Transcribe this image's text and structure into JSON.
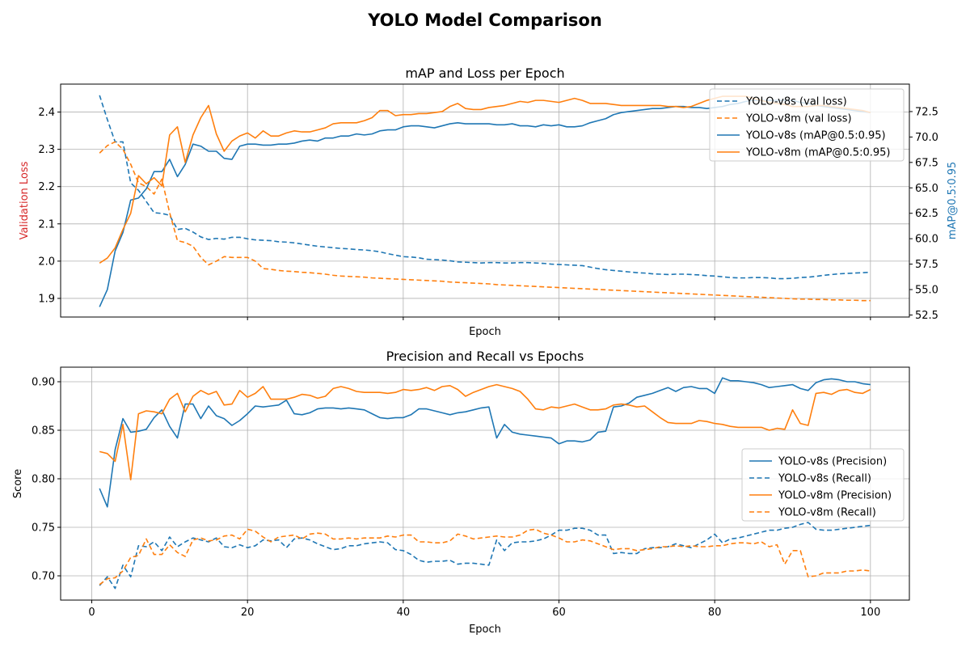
{
  "figure": {
    "title": "YOLO Model Comparison"
  },
  "colors": {
    "v8s": "#1f77b4",
    "v8m": "#ff7f0e",
    "loss_label": "#d62728",
    "map_label": "#1f77b4",
    "grid": "#b0b0b0"
  },
  "chart_data": [
    {
      "type": "line",
      "title": "mAP and Loss per Epoch",
      "xlabel": "Epoch",
      "ylabel": "Validation Loss",
      "ylabel_right": "mAP@0.5:0.95",
      "xlim": [
        -4,
        105
      ],
      "ylim": [
        1.85,
        2.475
      ],
      "ylim_right": [
        52.3,
        75.2
      ],
      "xticks": [
        20,
        40,
        60,
        80,
        100
      ],
      "xtick_labels_visible": false,
      "yticks": [
        "1.9",
        "2.0",
        "2.1",
        "2.2",
        "2.3",
        "2.4"
      ],
      "yticks_right": [
        "52.5",
        "55.0",
        "57.5",
        "60.0",
        "62.5",
        "65.0",
        "67.5",
        "70.0",
        "72.5"
      ],
      "grid": true,
      "legend": "upper right",
      "series": [
        {
          "name": "YOLO-v8s (val loss)",
          "axis": "left",
          "style": "dashed",
          "color": "#1f77b4",
          "values": [
            2.445,
            2.38,
            2.32,
            2.32,
            2.21,
            2.19,
            2.16,
            2.13,
            2.128,
            2.123,
            2.085,
            2.088,
            2.078,
            2.065,
            2.058,
            2.061,
            2.059,
            2.064,
            2.064,
            2.06,
            2.057,
            2.056,
            2.055,
            2.052,
            2.051,
            2.049,
            2.046,
            2.043,
            2.04,
            2.038,
            2.036,
            2.034,
            2.033,
            2.031,
            2.03,
            2.028,
            2.025,
            2.02,
            2.016,
            2.012,
            2.011,
            2.009,
            2.005,
            2.004,
            2.003,
            2.001,
            1.998,
            1.997,
            1.996,
            1.995,
            1.996,
            1.996,
            1.995,
            1.995,
            1.996,
            1.996,
            1.995,
            1.994,
            1.992,
            1.991,
            1.99,
            1.989,
            1.988,
            1.984,
            1.98,
            1.977,
            1.975,
            1.973,
            1.971,
            1.969,
            1.968,
            1.966,
            1.965,
            1.964,
            1.965,
            1.965,
            1.964,
            1.963,
            1.961,
            1.96,
            1.958,
            1.956,
            1.955,
            1.955,
            1.956,
            1.956,
            1.955,
            1.953,
            1.953,
            1.954,
            1.956,
            1.957,
            1.959,
            1.962,
            1.964,
            1.966,
            1.967,
            1.968,
            1.969,
            1.97
          ]
        },
        {
          "name": "YOLO-v8m (val loss)",
          "axis": "left",
          "style": "dashed",
          "color": "#ff7f0e",
          "values": [
            2.29,
            2.31,
            2.32,
            2.3,
            2.26,
            2.21,
            2.2,
            2.18,
            2.22,
            2.13,
            2.055,
            2.05,
            2.04,
            2.01,
            1.99,
            2.0,
            2.012,
            2.01,
            2.01,
            2.01,
            2.0,
            1.98,
            1.978,
            1.975,
            1.973,
            1.972,
            1.97,
            1.969,
            1.967,
            1.965,
            1.962,
            1.96,
            1.959,
            1.958,
            1.957,
            1.955,
            1.954,
            1.953,
            1.952,
            1.951,
            1.95,
            1.949,
            1.948,
            1.947,
            1.946,
            1.944,
            1.943,
            1.942,
            1.941,
            1.94,
            1.939,
            1.937,
            1.936,
            1.935,
            1.934,
            1.933,
            1.932,
            1.931,
            1.93,
            1.929,
            1.928,
            1.927,
            1.926,
            1.925,
            1.924,
            1.923,
            1.922,
            1.921,
            1.92,
            1.919,
            1.918,
            1.917,
            1.916,
            1.915,
            1.914,
            1.913,
            1.912,
            1.911,
            1.91,
            1.909,
            1.908,
            1.907,
            1.906,
            1.905,
            1.904,
            1.903,
            1.902,
            1.901,
            1.9,
            1.899,
            1.898,
            1.898,
            1.897,
            1.897,
            1.896,
            1.896,
            1.895,
            1.895,
            1.894,
            1.894
          ]
        },
        {
          "name": "YOLO-v8s (mAP@0.5:0.95)",
          "axis": "right",
          "style": "solid",
          "color": "#1f77b4",
          "values": [
            53.3,
            55.0,
            58.8,
            60.6,
            63.8,
            64.0,
            64.9,
            66.6,
            66.6,
            67.8,
            66.1,
            67.3,
            69.3,
            69.1,
            68.6,
            68.6,
            67.9,
            67.8,
            69.1,
            69.3,
            69.3,
            69.2,
            69.2,
            69.3,
            69.3,
            69.4,
            69.6,
            69.7,
            69.6,
            69.9,
            69.9,
            70.1,
            70.1,
            70.3,
            70.2,
            70.3,
            70.6,
            70.7,
            70.7,
            71.0,
            71.1,
            71.1,
            71.0,
            70.9,
            71.1,
            71.3,
            71.4,
            71.3,
            71.3,
            71.3,
            71.3,
            71.2,
            71.2,
            71.3,
            71.1,
            71.1,
            71.0,
            71.2,
            71.1,
            71.2,
            71.0,
            71.0,
            71.1,
            71.4,
            71.6,
            71.8,
            72.2,
            72.4,
            72.5,
            72.6,
            72.7,
            72.8,
            72.8,
            72.9,
            73.0,
            73.0,
            72.9,
            72.9,
            72.8,
            72.9,
            73.0,
            73.2,
            73.3,
            73.5,
            73.6,
            73.6,
            73.6,
            73.6,
            73.6,
            73.6,
            73.4,
            73.3,
            73.1,
            73.0,
            72.9,
            72.8,
            72.7,
            72.6,
            72.5,
            72.4
          ]
        },
        {
          "name": "YOLO-v8m (mAP@0.5:0.95)",
          "axis": "right",
          "style": "solid",
          "color": "#ff7f0e",
          "values": [
            57.6,
            58.1,
            59.1,
            60.9,
            62.5,
            66.2,
            65.4,
            66.0,
            65.2,
            70.2,
            71.0,
            67.5,
            70.2,
            71.9,
            73.1,
            70.3,
            68.6,
            69.6,
            70.1,
            70.4,
            69.9,
            70.6,
            70.1,
            70.1,
            70.4,
            70.6,
            70.5,
            70.5,
            70.7,
            70.9,
            71.3,
            71.4,
            71.4,
            71.4,
            71.6,
            71.9,
            72.6,
            72.6,
            72.1,
            72.2,
            72.2,
            72.3,
            72.3,
            72.4,
            72.5,
            73.0,
            73.3,
            72.8,
            72.7,
            72.7,
            72.9,
            73.0,
            73.1,
            73.3,
            73.5,
            73.4,
            73.6,
            73.6,
            73.5,
            73.4,
            73.6,
            73.8,
            73.6,
            73.3,
            73.3,
            73.3,
            73.2,
            73.1,
            73.1,
            73.1,
            73.1,
            73.1,
            73.1,
            73.0,
            73.0,
            72.9,
            73.0,
            73.3,
            73.6,
            73.8,
            74.0,
            74.0,
            74.0,
            74.0,
            73.8,
            73.6,
            73.4,
            73.3,
            73.2,
            73.0,
            73.0,
            73.0,
            73.1,
            73.1,
            73.0,
            72.9,
            72.8,
            72.7,
            72.6,
            72.4
          ]
        }
      ]
    },
    {
      "type": "line",
      "title": "Precision and Recall vs Epochs",
      "xlabel": "Epoch",
      "ylabel": "Score",
      "xlim": [
        -4,
        105
      ],
      "ylim": [
        0.675,
        0.915
      ],
      "xticks": [
        "0",
        "20",
        "40",
        "60",
        "80",
        "100"
      ],
      "yticks": [
        "0.70",
        "0.75",
        "0.80",
        "0.85",
        "0.90"
      ],
      "grid": true,
      "legend": "center right",
      "series": [
        {
          "name": "YOLO-v8s (Precision)",
          "style": "solid",
          "color": "#1f77b4",
          "values": [
            0.79,
            0.771,
            0.83,
            0.862,
            0.848,
            0.849,
            0.851,
            0.863,
            0.871,
            0.854,
            0.842,
            0.877,
            0.877,
            0.862,
            0.875,
            0.865,
            0.862,
            0.855,
            0.86,
            0.867,
            0.875,
            0.874,
            0.875,
            0.876,
            0.881,
            0.867,
            0.866,
            0.868,
            0.872,
            0.873,
            0.873,
            0.872,
            0.873,
            0.872,
            0.871,
            0.867,
            0.863,
            0.862,
            0.863,
            0.863,
            0.866,
            0.872,
            0.872,
            0.87,
            0.868,
            0.866,
            0.868,
            0.869,
            0.871,
            0.873,
            0.874,
            0.842,
            0.856,
            0.848,
            0.846,
            0.845,
            0.844,
            0.843,
            0.842,
            0.836,
            0.839,
            0.839,
            0.838,
            0.84,
            0.848,
            0.849,
            0.874,
            0.875,
            0.878,
            0.884,
            0.886,
            0.888,
            0.891,
            0.894,
            0.89,
            0.894,
            0.895,
            0.893,
            0.893,
            0.888,
            0.904,
            0.901,
            0.901,
            0.9,
            0.899,
            0.897,
            0.894,
            0.895,
            0.896,
            0.897,
            0.893,
            0.891,
            0.899,
            0.902,
            0.903,
            0.902,
            0.9,
            0.9,
            0.898,
            0.897
          ]
        },
        {
          "name": "YOLO-v8s (Recall)",
          "style": "dashed",
          "color": "#1f77b4",
          "values": [
            0.69,
            0.699,
            0.687,
            0.711,
            0.699,
            0.731,
            0.73,
            0.735,
            0.726,
            0.74,
            0.73,
            0.735,
            0.739,
            0.737,
            0.735,
            0.739,
            0.73,
            0.729,
            0.732,
            0.729,
            0.731,
            0.737,
            0.736,
            0.737,
            0.729,
            0.738,
            0.739,
            0.737,
            0.733,
            0.73,
            0.727,
            0.728,
            0.731,
            0.731,
            0.733,
            0.734,
            0.735,
            0.734,
            0.727,
            0.726,
            0.722,
            0.716,
            0.714,
            0.715,
            0.715,
            0.716,
            0.712,
            0.713,
            0.713,
            0.712,
            0.711,
            0.737,
            0.726,
            0.734,
            0.735,
            0.735,
            0.736,
            0.738,
            0.742,
            0.747,
            0.747,
            0.749,
            0.749,
            0.747,
            0.742,
            0.742,
            0.723,
            0.724,
            0.723,
            0.723,
            0.728,
            0.729,
            0.729,
            0.73,
            0.733,
            0.731,
            0.729,
            0.733,
            0.737,
            0.743,
            0.734,
            0.738,
            0.739,
            0.741,
            0.743,
            0.745,
            0.747,
            0.747,
            0.749,
            0.75,
            0.753,
            0.755,
            0.748,
            0.747,
            0.747,
            0.748,
            0.749,
            0.75,
            0.751,
            0.752
          ]
        },
        {
          "name": "YOLO-v8m (Precision)",
          "style": "solid",
          "color": "#ff7f0e",
          "values": [
            0.828,
            0.826,
            0.818,
            0.856,
            0.799,
            0.867,
            0.87,
            0.869,
            0.867,
            0.882,
            0.888,
            0.869,
            0.885,
            0.891,
            0.887,
            0.89,
            0.876,
            0.877,
            0.891,
            0.884,
            0.888,
            0.895,
            0.882,
            0.882,
            0.882,
            0.884,
            0.887,
            0.886,
            0.883,
            0.885,
            0.893,
            0.895,
            0.893,
            0.89,
            0.889,
            0.889,
            0.889,
            0.888,
            0.889,
            0.892,
            0.891,
            0.892,
            0.894,
            0.891,
            0.895,
            0.896,
            0.892,
            0.885,
            0.889,
            0.892,
            0.895,
            0.897,
            0.895,
            0.893,
            0.89,
            0.882,
            0.872,
            0.871,
            0.874,
            0.873,
            0.875,
            0.877,
            0.874,
            0.871,
            0.871,
            0.872,
            0.876,
            0.877,
            0.876,
            0.874,
            0.875,
            0.869,
            0.863,
            0.858,
            0.857,
            0.857,
            0.857,
            0.86,
            0.859,
            0.857,
            0.856,
            0.854,
            0.853,
            0.853,
            0.853,
            0.853,
            0.85,
            0.852,
            0.851,
            0.871,
            0.857,
            0.855,
            0.888,
            0.889,
            0.887,
            0.891,
            0.892,
            0.889,
            0.888,
            0.892
          ]
        },
        {
          "name": "YOLO-v8m (Recall)",
          "style": "dashed",
          "color": "#ff7f0e",
          "values": [
            0.691,
            0.697,
            0.698,
            0.705,
            0.719,
            0.721,
            0.738,
            0.722,
            0.722,
            0.732,
            0.724,
            0.72,
            0.737,
            0.739,
            0.736,
            0.737,
            0.741,
            0.742,
            0.738,
            0.748,
            0.746,
            0.74,
            0.735,
            0.74,
            0.741,
            0.742,
            0.738,
            0.743,
            0.744,
            0.743,
            0.738,
            0.738,
            0.739,
            0.738,
            0.739,
            0.739,
            0.739,
            0.741,
            0.74,
            0.742,
            0.742,
            0.735,
            0.735,
            0.734,
            0.734,
            0.736,
            0.743,
            0.741,
            0.738,
            0.739,
            0.74,
            0.741,
            0.74,
            0.74,
            0.742,
            0.747,
            0.748,
            0.744,
            0.742,
            0.739,
            0.735,
            0.735,
            0.737,
            0.736,
            0.733,
            0.73,
            0.727,
            0.728,
            0.728,
            0.726,
            0.727,
            0.728,
            0.73,
            0.73,
            0.731,
            0.73,
            0.731,
            0.73,
            0.73,
            0.731,
            0.731,
            0.733,
            0.734,
            0.734,
            0.733,
            0.735,
            0.73,
            0.732,
            0.712,
            0.726,
            0.726,
            0.699,
            0.7,
            0.703,
            0.703,
            0.703,
            0.705,
            0.705,
            0.706,
            0.705
          ]
        }
      ]
    }
  ]
}
